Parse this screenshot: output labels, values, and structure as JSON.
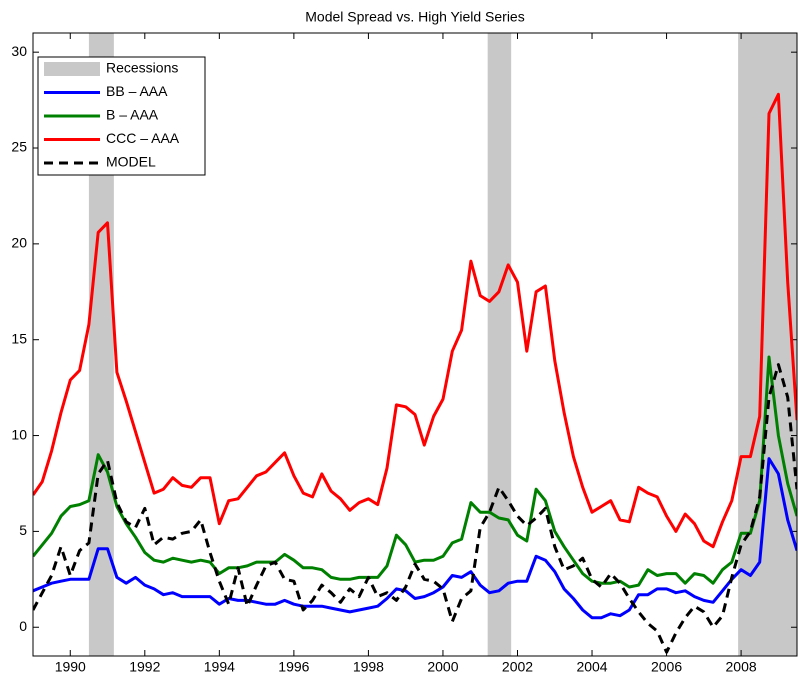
{
  "chart_data": {
    "type": "line",
    "title": "Model Spread vs. High Yield Series",
    "xlim": [
      1989,
      2009.5
    ],
    "ylim": [
      -1.5,
      31
    ],
    "xticks": [
      1990,
      1992,
      1994,
      1996,
      1998,
      2000,
      2002,
      2004,
      2006,
      2008
    ],
    "yticks": [
      0,
      5,
      10,
      15,
      20,
      25,
      30
    ],
    "legend": "upper left",
    "recessions": {
      "name": "Recessions",
      "color": "#c8c8c8",
      "periods": [
        [
          1990.5,
          1991.17
        ],
        [
          2001.2,
          2001.83
        ],
        [
          2007.92,
          2009.5
        ]
      ]
    },
    "x": [
      1989,
      1989.25,
      1989.5,
      1989.75,
      1990,
      1990.25,
      1990.5,
      1990.75,
      1991,
      1991.25,
      1991.5,
      1991.75,
      1992,
      1992.25,
      1992.5,
      1992.75,
      1993,
      1993.25,
      1993.5,
      1993.75,
      1994,
      1994.25,
      1994.5,
      1994.75,
      1995,
      1995.25,
      1995.5,
      1995.75,
      1996,
      1996.25,
      1996.5,
      1996.75,
      1997,
      1997.25,
      1997.5,
      1997.75,
      1998,
      1998.25,
      1998.5,
      1998.75,
      1999,
      1999.25,
      1999.5,
      1999.75,
      2000,
      2000.25,
      2000.5,
      2000.75,
      2001,
      2001.25,
      2001.5,
      2001.75,
      2002,
      2002.25,
      2002.5,
      2002.75,
      2003,
      2003.25,
      2003.5,
      2003.75,
      2004,
      2004.25,
      2004.5,
      2004.75,
      2005,
      2005.25,
      2005.5,
      2005.75,
      2006,
      2006.25,
      2006.5,
      2006.75,
      2007,
      2007.25,
      2007.5,
      2007.75,
      2008,
      2008.25,
      2008.5,
      2008.75,
      2009,
      2009.25,
      2009.5
    ],
    "series": [
      {
        "name": "BB – AAA",
        "color": "#0000ff",
        "style": "solid",
        "values": [
          1.9,
          2.1,
          2.3,
          2.4,
          2.5,
          2.5,
          2.5,
          4.1,
          4.1,
          2.6,
          2.3,
          2.6,
          2.2,
          2.0,
          1.7,
          1.8,
          1.6,
          1.6,
          1.6,
          1.6,
          1.2,
          1.5,
          1.4,
          1.4,
          1.3,
          1.2,
          1.2,
          1.4,
          1.2,
          1.1,
          1.1,
          1.1,
          1.0,
          0.9,
          0.8,
          0.9,
          1.0,
          1.1,
          1.5,
          2.0,
          1.9,
          1.5,
          1.6,
          1.8,
          2.1,
          2.7,
          2.6,
          2.9,
          2.2,
          1.8,
          1.9,
          2.3,
          2.4,
          2.4,
          3.7,
          3.5,
          2.9,
          2.0,
          1.5,
          0.9,
          0.5,
          0.5,
          0.7,
          0.6,
          0.9,
          1.7,
          1.7,
          2.0,
          2.0,
          1.8,
          1.9,
          1.6,
          1.4,
          1.3,
          1.9,
          2.5,
          3.0,
          2.7,
          3.4,
          8.8,
          8.0,
          5.6,
          4.0
        ]
      },
      {
        "name": "B – AAA",
        "color": "#008000",
        "style": "solid",
        "values": [
          3.7,
          4.3,
          4.9,
          5.8,
          6.3,
          6.4,
          6.6,
          9.0,
          8.1,
          6.3,
          5.4,
          4.7,
          3.9,
          3.5,
          3.4,
          3.6,
          3.5,
          3.4,
          3.5,
          3.4,
          2.8,
          3.1,
          3.1,
          3.2,
          3.4,
          3.4,
          3.4,
          3.8,
          3.5,
          3.1,
          3.1,
          3.0,
          2.6,
          2.5,
          2.5,
          2.6,
          2.6,
          2.6,
          3.2,
          4.8,
          4.3,
          3.4,
          3.5,
          3.5,
          3.7,
          4.4,
          4.6,
          6.5,
          6.0,
          6.0,
          5.7,
          5.6,
          4.8,
          4.5,
          7.2,
          6.6,
          5.0,
          4.2,
          3.5,
          2.8,
          2.4,
          2.3,
          2.3,
          2.4,
          2.1,
          2.2,
          3.0,
          2.7,
          2.8,
          2.8,
          2.3,
          2.8,
          2.7,
          2.3,
          3.0,
          3.4,
          4.9,
          4.9,
          6.6,
          14.1,
          10.0,
          7.5,
          5.8
        ]
      },
      {
        "name": "CCC – AAA",
        "color": "#ff0000",
        "style": "solid",
        "values": [
          6.9,
          7.6,
          9.2,
          11.2,
          12.9,
          13.4,
          15.8,
          20.6,
          21.1,
          13.3,
          11.8,
          10.2,
          8.6,
          7.0,
          7.2,
          7.8,
          7.4,
          7.3,
          7.8,
          7.8,
          5.4,
          6.6,
          6.7,
          7.3,
          7.9,
          8.1,
          8.6,
          9.1,
          7.9,
          7.0,
          6.8,
          8.0,
          7.1,
          6.7,
          6.1,
          6.5,
          6.7,
          6.4,
          8.3,
          11.6,
          11.5,
          11.1,
          9.5,
          11.0,
          11.9,
          14.4,
          15.5,
          19.1,
          17.3,
          17.0,
          17.5,
          18.9,
          18.0,
          14.4,
          17.5,
          17.8,
          13.9,
          11.2,
          8.9,
          7.3,
          6.0,
          6.3,
          6.6,
          5.6,
          5.5,
          7.3,
          7.0,
          6.8,
          5.8,
          5.0,
          5.9,
          5.4,
          4.5,
          4.2,
          5.5,
          6.6,
          8.9,
          8.9,
          11.0,
          26.8,
          27.8,
          18.0,
          10.8
        ]
      },
      {
        "name": "MODEL",
        "color": "#000000",
        "style": "dashed",
        "values": [
          0.9,
          1.8,
          2.7,
          4.2,
          2.7,
          4.0,
          4.4,
          8.0,
          8.7,
          6.5,
          5.5,
          5.2,
          6.2,
          4.3,
          4.7,
          4.6,
          4.9,
          5.0,
          5.6,
          3.9,
          2.4,
          1.2,
          3.1,
          1.1,
          2.2,
          3.2,
          3.4,
          2.5,
          2.4,
          0.9,
          1.4,
          2.2,
          1.8,
          1.3,
          2.0,
          1.6,
          2.6,
          1.6,
          1.8,
          1.4,
          2.1,
          3.3,
          2.5,
          2.4,
          2.0,
          0.3,
          1.5,
          1.9,
          5.2,
          6.0,
          7.3,
          6.6,
          5.8,
          5.3,
          5.7,
          6.2,
          4.2,
          3.0,
          3.2,
          3.6,
          2.5,
          2.1,
          2.8,
          2.3,
          1.5,
          0.8,
          0.2,
          -0.2,
          -1.3,
          -0.3,
          0.5,
          1.1,
          0.8,
          0.0,
          0.6,
          2.6,
          4.3,
          5.0,
          6.8,
          12.0,
          13.7,
          12.0,
          7.2
        ]
      }
    ]
  }
}
